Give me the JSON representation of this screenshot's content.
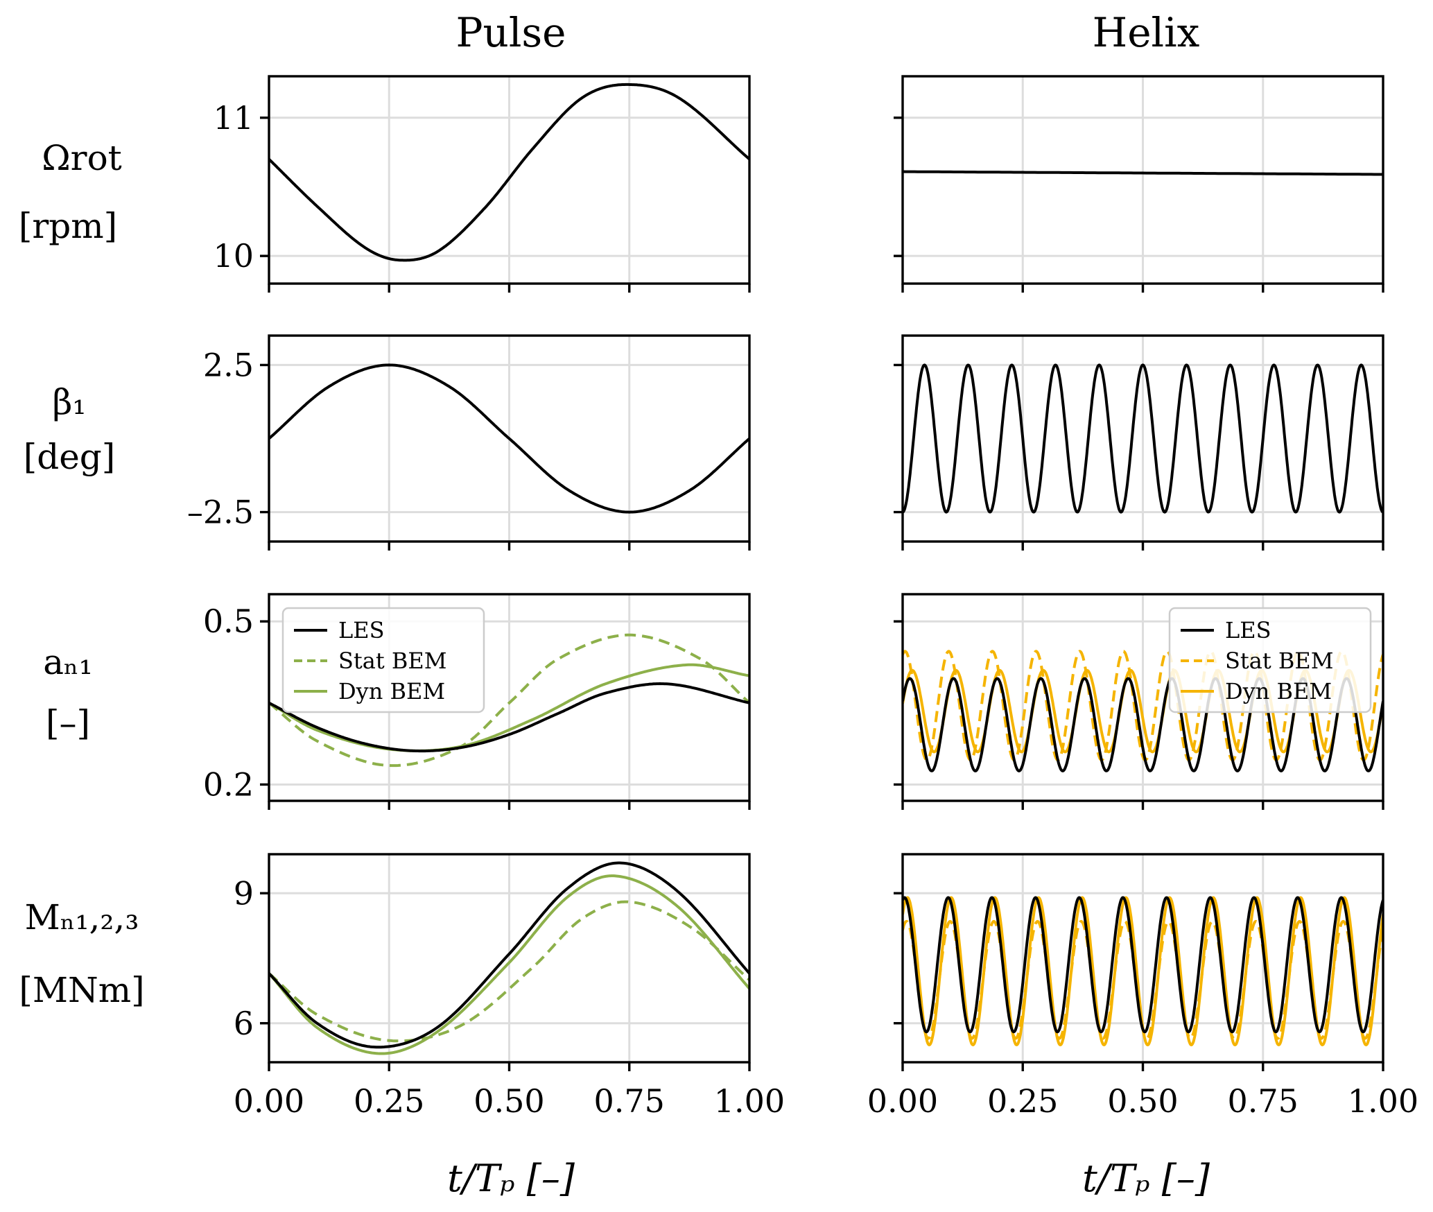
{
  "colors": {
    "les": "#000000",
    "pulse_bem": "#8db04a",
    "helix_bem": "#f5b400"
  },
  "columns": [
    "Pulse",
    "Helix"
  ],
  "x_label": "t/Tₚ [–]",
  "x_ticks": [
    "0.00",
    "0.25",
    "0.50",
    "0.75",
    "1.00"
  ],
  "rows": [
    {
      "symbol": "Ωrot",
      "unit": "[rpm]"
    },
    {
      "symbol": "β₁",
      "unit": "[deg]"
    },
    {
      "symbol": "aₙ₁",
      "unit": "[–]"
    },
    {
      "symbol": "Mₙ₁,₂,₃",
      "unit": "[MNm]"
    }
  ],
  "legend": [
    "LES",
    "Stat BEM",
    "Dyn BEM"
  ],
  "chart_data": [
    {
      "type": "line",
      "panel": "pulse-omega",
      "title": "Pulse",
      "ylabel": "Ωrot [rpm]",
      "xlim": [
        0,
        1
      ],
      "ylim": [
        9.8,
        11.3
      ],
      "yticks": [
        "10",
        "11"
      ],
      "ytick_values": [
        10,
        11
      ],
      "series": [
        {
          "name": "Ωrot",
          "color": "#000000",
          "style": "solid",
          "x": [
            0,
            0.1,
            0.2,
            0.27,
            0.35,
            0.45,
            0.55,
            0.65,
            0.74,
            0.85,
            1.0
          ],
          "values": [
            10.7,
            10.36,
            10.06,
            9.97,
            10.03,
            10.35,
            10.78,
            11.14,
            11.24,
            11.15,
            10.7
          ]
        }
      ]
    },
    {
      "type": "line",
      "panel": "helix-omega",
      "title": "Helix",
      "ylabel": "Ωrot [rpm]",
      "xlim": [
        0,
        1
      ],
      "ylim": [
        9.8,
        11.3
      ],
      "yticks": [
        "",
        ""
      ],
      "ytick_values": [
        10,
        11
      ],
      "series": [
        {
          "name": "Ωrot",
          "color": "#000000",
          "style": "solid",
          "x": [
            0,
            0.25,
            0.5,
            0.75,
            1.0
          ],
          "values": [
            10.61,
            10.605,
            10.6,
            10.595,
            10.59
          ]
        }
      ]
    },
    {
      "type": "line",
      "panel": "pulse-beta",
      "ylabel": "β₁ [deg]",
      "xlim": [
        0,
        1
      ],
      "ylim": [
        -3.5,
        3.5
      ],
      "yticks": [
        "2.5",
        "–2.5"
      ],
      "ytick_values": [
        2.5,
        -2.5
      ],
      "series": [
        {
          "name": "β₁",
          "color": "#000000",
          "style": "solid",
          "x": [
            0,
            0.125,
            0.25,
            0.375,
            0.5,
            0.625,
            0.75,
            0.875,
            1.0
          ],
          "values": [
            0,
            1.77,
            2.5,
            1.77,
            0,
            -1.77,
            -2.5,
            -1.77,
            0
          ]
        }
      ]
    },
    {
      "type": "line",
      "panel": "helix-beta",
      "ylabel": "β₁ [deg]",
      "xlim": [
        0,
        1
      ],
      "ylim": [
        -3.5,
        3.5
      ],
      "yticks": [
        "",
        ""
      ],
      "ytick_values": [
        2.5,
        -2.5
      ],
      "series": [
        {
          "name": "β₁",
          "color": "#000000",
          "style": "solid",
          "function": "-2.5*cos(2*pi*11*x)",
          "cycles": 11,
          "amplitude": 2.5
        }
      ]
    },
    {
      "type": "line",
      "panel": "pulse-an1",
      "ylabel": "aₙ₁ [–]",
      "xlim": [
        0,
        1
      ],
      "ylim": [
        0.17,
        0.55
      ],
      "yticks": [
        "0.5",
        "0.2"
      ],
      "ytick_values": [
        0.5,
        0.2
      ],
      "legend": "top-left",
      "series": [
        {
          "name": "LES",
          "color": "#000000",
          "style": "solid",
          "x": [
            0,
            0.1,
            0.2,
            0.3,
            0.4,
            0.5,
            0.6,
            0.7,
            0.83,
            1.0
          ],
          "values": [
            0.35,
            0.305,
            0.275,
            0.262,
            0.268,
            0.292,
            0.33,
            0.368,
            0.385,
            0.35
          ]
        },
        {
          "name": "Stat BEM",
          "color": "#8db04a",
          "style": "dashed",
          "x": [
            0,
            0.1,
            0.25,
            0.4,
            0.5,
            0.6,
            0.75,
            0.9,
            1.0
          ],
          "values": [
            0.35,
            0.28,
            0.235,
            0.27,
            0.35,
            0.43,
            0.475,
            0.43,
            0.35
          ]
        },
        {
          "name": "Dyn BEM",
          "color": "#8db04a",
          "style": "solid",
          "x": [
            0,
            0.1,
            0.25,
            0.4,
            0.55,
            0.7,
            0.87,
            1.0
          ],
          "values": [
            0.35,
            0.3,
            0.265,
            0.27,
            0.32,
            0.385,
            0.42,
            0.4
          ]
        }
      ]
    },
    {
      "type": "line",
      "panel": "helix-an1",
      "ylabel": "aₙ₁ [–]",
      "xlim": [
        0,
        1
      ],
      "ylim": [
        0.17,
        0.55
      ],
      "yticks": [
        "",
        ""
      ],
      "ytick_values": [
        0.5,
        0.2
      ],
      "legend": "top-right",
      "series": [
        {
          "name": "LES",
          "color": "#000000",
          "style": "solid",
          "function": "0.31+0.085*cos(2*pi*11*(x-0.015))"
        },
        {
          "name": "Stat BEM",
          "color": "#f5b400",
          "style": "dashed",
          "function": "0.345+0.1*cos(2*pi*11*(x-0.005))"
        },
        {
          "name": "Dyn BEM",
          "color": "#f5b400",
          "style": "solid",
          "function": "0.335+0.075*cos(2*pi*11*(x-0.02))"
        }
      ]
    },
    {
      "type": "line",
      "panel": "pulse-mn",
      "ylabel": "Mₙ₁,₂,₃ [MNm]",
      "xlim": [
        0,
        1
      ],
      "ylim": [
        5.1,
        9.9
      ],
      "yticks": [
        "9",
        "6"
      ],
      "ytick_values": [
        9,
        6
      ],
      "series": [
        {
          "name": "LES",
          "color": "#000000",
          "style": "solid",
          "x": [
            0,
            0.1,
            0.22,
            0.35,
            0.5,
            0.62,
            0.73,
            0.85,
            1.0
          ],
          "values": [
            7.15,
            6.0,
            5.45,
            5.9,
            7.6,
            9.1,
            9.7,
            9.05,
            7.15
          ]
        },
        {
          "name": "Stat BEM",
          "color": "#8db04a",
          "style": "dashed",
          "x": [
            0,
            0.1,
            0.25,
            0.4,
            0.55,
            0.65,
            0.75,
            0.88,
            1.0
          ],
          "values": [
            7.15,
            6.2,
            5.6,
            5.95,
            7.3,
            8.4,
            8.8,
            8.2,
            7.0
          ]
        },
        {
          "name": "Dyn BEM",
          "color": "#8db04a",
          "style": "solid",
          "x": [
            0,
            0.1,
            0.23,
            0.35,
            0.5,
            0.62,
            0.72,
            0.85,
            1.0
          ],
          "values": [
            7.15,
            5.9,
            5.3,
            5.8,
            7.4,
            8.9,
            9.4,
            8.7,
            6.8
          ]
        }
      ]
    },
    {
      "type": "line",
      "panel": "helix-mn",
      "ylabel": "Mₙ₁,₂,₃ [MNm]",
      "xlim": [
        0,
        1
      ],
      "ylim": [
        5.1,
        9.9
      ],
      "yticks": [
        "",
        ""
      ],
      "ytick_values": [
        9,
        6
      ],
      "series": [
        {
          "name": "LES",
          "color": "#000000",
          "style": "solid",
          "function": "7.35+1.55*cos(2*pi*11*(x-0.004))"
        },
        {
          "name": "Stat BEM",
          "color": "#f5b400",
          "style": "dashed",
          "function": "7.0+1.35*cos(2*pi*11*(x-0.008))"
        },
        {
          "name": "Dyn BEM",
          "color": "#f5b400",
          "style": "solid",
          "function": "7.2+1.7*cos(2*pi*11*(x-0.01))"
        }
      ]
    }
  ]
}
